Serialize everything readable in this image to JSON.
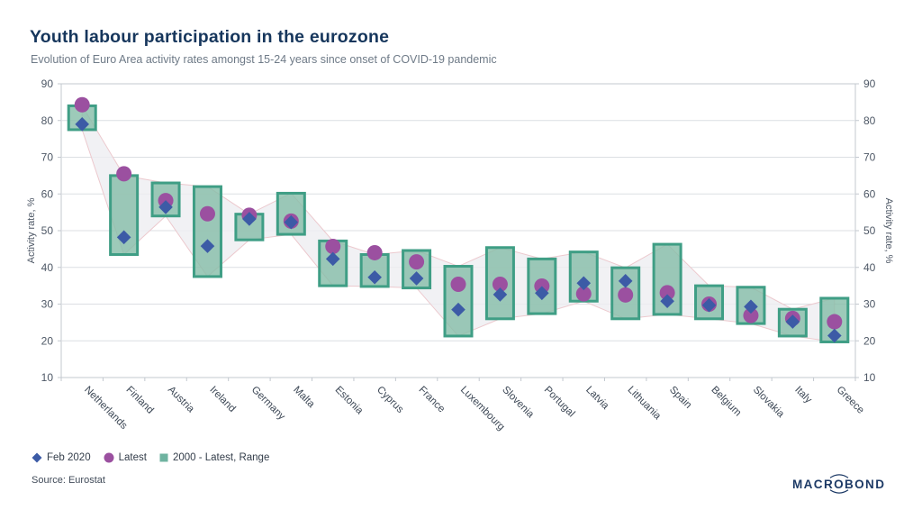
{
  "header": {
    "title": "Youth labour participation in the eurozone",
    "subtitle": "Evolution of Euro Area activity rates amongst 15-24 years since onset of COVID-19 pandemic"
  },
  "footer": {
    "source": "Source: Eurostat",
    "logo_text": "MACROBOND"
  },
  "colors": {
    "title_navy": "#16365c",
    "feb2020_diamond": "#3c5ba6",
    "latest_circle": "#9b50a0",
    "range_box_fill": "#85bda8",
    "range_box_border": "#3f9e85",
    "band_fill": "#ededf1",
    "band_border": "#ecc9ce",
    "gridline": "#dcdfe3",
    "axis_line": "#c3c8cf"
  },
  "chart_data": {
    "type": "bar",
    "variant": "range-boxes-with-point-markers",
    "title": "Youth labour participation in the eurozone",
    "subtitle": "Evolution of Euro Area activity rates amongst 15-24 years since onset of COVID-19 pandemic",
    "ylabel_left": "Activity rate, %",
    "ylabel_right": "Activity rate, %",
    "xlabel": "",
    "ylim": [
      10,
      90
    ],
    "yticks": [
      90,
      80,
      70,
      60,
      50,
      40,
      30,
      20,
      10
    ],
    "grid": "horizontal",
    "legend_position": "bottom-left",
    "categories": [
      "Netherlands",
      "Finland",
      "Austria",
      "Ireland",
      "Germany",
      "Malta",
      "Estonia",
      "Cyprus",
      "France",
      "Luxembourg",
      "Slovenia",
      "Portugal",
      "Latvia",
      "Lithuania",
      "Spain",
      "Belgium",
      "Slovakia",
      "Italy",
      "Greece"
    ],
    "series": [
      {
        "name": "Feb 2020",
        "marker": "diamond",
        "color": "#3c5ba6",
        "values": [
          79,
          48.2,
          56.4,
          45.8,
          53.2,
          52.3,
          42.3,
          37.3,
          37,
          28.5,
          32.6,
          33,
          35.7,
          36.3,
          30.8,
          29.7,
          29.3,
          25.2,
          21.4
        ]
      },
      {
        "name": "Latest",
        "marker": "circle",
        "color": "#9b50a0",
        "values": [
          84.3,
          65.5,
          58.2,
          54.6,
          54.2,
          52.6,
          45.7,
          44,
          41.5,
          35.4,
          35.4,
          34.9,
          32.8,
          32.5,
          33.1,
          30,
          26.9,
          26.1,
          25.2
        ]
      },
      {
        "name": "2000 - Latest, Range",
        "marker": "square",
        "color": "#6fb3a0",
        "ranges": [
          [
            77.5,
            84
          ],
          [
            43.5,
            65
          ],
          [
            54,
            63
          ],
          [
            37.5,
            62
          ],
          [
            47.5,
            54.5
          ],
          [
            49,
            60.2
          ],
          [
            35,
            47.2
          ],
          [
            34.8,
            43.5
          ],
          [
            34.4,
            44.6
          ],
          [
            21.3,
            40.3
          ],
          [
            26,
            45.4
          ],
          [
            27.4,
            42.3
          ],
          [
            30.8,
            44.2
          ],
          [
            26,
            39.9
          ],
          [
            27.2,
            46.3
          ],
          [
            26,
            35
          ],
          [
            24.7,
            34.6
          ],
          [
            21.3,
            28.6
          ],
          [
            19.7,
            31.6
          ]
        ]
      }
    ]
  }
}
